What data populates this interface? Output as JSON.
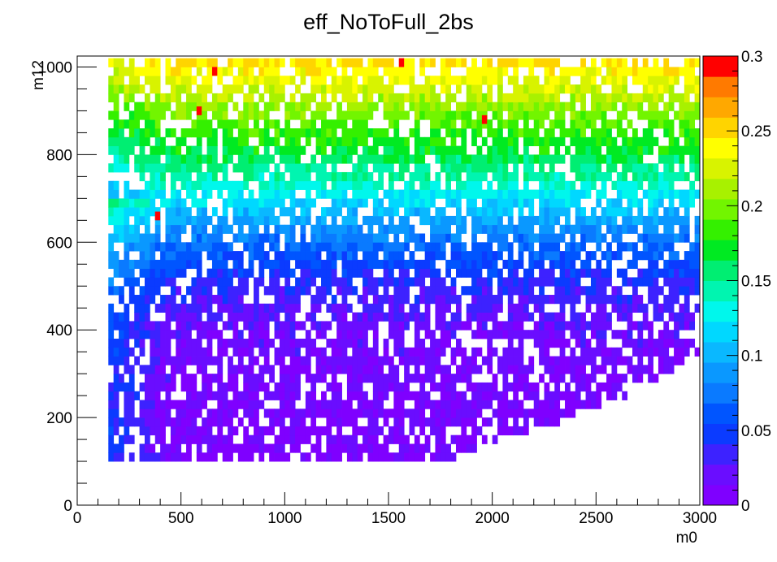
{
  "chart_data": {
    "type": "heatmap",
    "title": "eff_NoToFull_2bs",
    "xlabel": "m0",
    "ylabel": "m12",
    "xlim": [
      0,
      3000
    ],
    "ylim": [
      0,
      1025
    ],
    "x_ticks": [
      0,
      500,
      1000,
      1500,
      2000,
      2500,
      3000
    ],
    "x_tick_labels": [
      "0",
      "500",
      "1000",
      "1500",
      "2000",
      "2500",
      "3000"
    ],
    "y_ticks": [
      0,
      200,
      400,
      600,
      800,
      1000
    ],
    "y_tick_labels": [
      "0",
      "200",
      "400",
      "600",
      "800",
      "1000"
    ],
    "grid": false,
    "colorbar": {
      "min": 0,
      "max": 0.3,
      "ticks": [
        0,
        0.05,
        0.1,
        0.15,
        0.2,
        0.25,
        0.3
      ],
      "tick_labels": [
        "0",
        "0.05",
        "0.1",
        "0.15",
        "0.2",
        "0.25",
        "0.3"
      ],
      "palette": [
        "#7f00ff",
        "#6a0dff",
        "#3d22ff",
        "#0b3bff",
        "#0055ff",
        "#0a7aff",
        "#0a98ff",
        "#0ab8ff",
        "#00d8ff",
        "#00f7ec",
        "#00f5b0",
        "#00ee72",
        "#00ea22",
        "#34f000",
        "#72f500",
        "#a8f100",
        "#d8f300",
        "#ffff00",
        "#ffd400",
        "#ffa800",
        "#ff7a00",
        "#ff0000"
      ]
    },
    "grid_bins": {
      "x_start": 0,
      "x_step": 25,
      "nx": 120,
      "y_start": 100,
      "y_step": 20,
      "ny": 46
    },
    "efficiency_rows": [
      {
        "m12": 100,
        "eff": 0.01
      },
      {
        "m12": 200,
        "eff": 0.012
      },
      {
        "m12": 300,
        "eff": 0.015
      },
      {
        "m12": 400,
        "eff": 0.02
      },
      {
        "m12": 500,
        "eff": 0.04
      },
      {
        "m12": 560,
        "eff": 0.06
      },
      {
        "m12": 620,
        "eff": 0.085
      },
      {
        "m12": 680,
        "eff": 0.115
      },
      {
        "m12": 740,
        "eff": 0.145
      },
      {
        "m12": 800,
        "eff": 0.168
      },
      {
        "m12": 860,
        "eff": 0.19
      },
      {
        "m12": 920,
        "eff": 0.215
      },
      {
        "m12": 980,
        "eff": 0.24
      },
      {
        "m12": 1020,
        "eff": 0.255
      }
    ],
    "low_m0_efficiency_offset": 0.05,
    "low_m0_offset_until": 450,
    "coverage_boundary": [
      {
        "m0": 150,
        "m12_min": 840
      },
      {
        "m0": 200,
        "m12_min": 780
      },
      {
        "m0": 250,
        "m12_min": 720
      },
      {
        "m0": 300,
        "m12_min": 660
      },
      {
        "m0": 350,
        "m12_min": 600
      }
    ],
    "lower_boundary": [
      {
        "m0": 50,
        "m12_min": 100
      },
      {
        "m0": 1800,
        "m12_min": 100
      },
      {
        "m0": 2000,
        "m12_min": 140
      },
      {
        "m0": 2300,
        "m12_min": 180
      },
      {
        "m0": 2600,
        "m12_min": 230
      },
      {
        "m0": 2800,
        "m12_min": 280
      },
      {
        "m0": 3000,
        "m12_min": 340
      }
    ],
    "outliers": [
      {
        "m0": 650,
        "m12": 980,
        "eff": 0.3
      },
      {
        "m0": 1550,
        "m12": 1000,
        "eff": 0.3
      },
      {
        "m0": 575,
        "m12": 890,
        "eff": 0.3
      },
      {
        "m0": 1950,
        "m12": 870,
        "eff": 0.3
      },
      {
        "m0": 375,
        "m12": 650,
        "eff": 0.3
      }
    ]
  }
}
